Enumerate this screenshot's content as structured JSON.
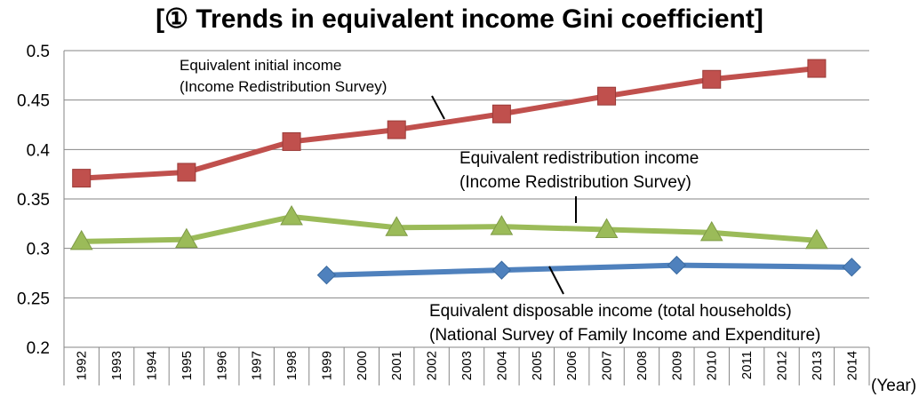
{
  "chart_data": {
    "type": "line",
    "title": "[① Trends in equivalent income Gini coefficient]",
    "xlabel": "(Year)",
    "ylabel": "",
    "ylim": [
      0.2,
      0.5
    ],
    "y_ticks": [
      "0.2",
      "0.25",
      "0.3",
      "0.35",
      "0.4",
      "0.45",
      "0.5"
    ],
    "categories": [
      "1992",
      "1993",
      "1994",
      "1995",
      "1996",
      "1997",
      "1998",
      "1999",
      "2000",
      "2001",
      "2002",
      "2003",
      "2004",
      "2005",
      "2006",
      "2007",
      "2008",
      "2009",
      "2010",
      "2011",
      "2012",
      "2013",
      "2014"
    ],
    "grid": "horizontal",
    "legend": "none",
    "series": [
      {
        "name": "Equivalent initial income (Income Redistribution Survey)",
        "color": "#c0504d",
        "marker": "square",
        "points": [
          {
            "x": "1992",
            "y": 0.371
          },
          {
            "x": "1995",
            "y": 0.377
          },
          {
            "x": "1998",
            "y": 0.408
          },
          {
            "x": "2001",
            "y": 0.42
          },
          {
            "x": "2004",
            "y": 0.436
          },
          {
            "x": "2007",
            "y": 0.454
          },
          {
            "x": "2010",
            "y": 0.471
          },
          {
            "x": "2013",
            "y": 0.482
          }
        ]
      },
      {
        "name": "Equivalent redistribution income (Income Redistribution Survey)",
        "color": "#9bbb59",
        "marker": "triangle",
        "points": [
          {
            "x": "1992",
            "y": 0.307
          },
          {
            "x": "1995",
            "y": 0.309
          },
          {
            "x": "1998",
            "y": 0.332
          },
          {
            "x": "2001",
            "y": 0.321
          },
          {
            "x": "2004",
            "y": 0.322
          },
          {
            "x": "2007",
            "y": 0.319
          },
          {
            "x": "2010",
            "y": 0.316
          },
          {
            "x": "2013",
            "y": 0.308
          }
        ]
      },
      {
        "name": "Equivalent disposable income (total households) (National Survey of Family Income and Expenditure)",
        "color": "#4f81bd",
        "marker": "diamond",
        "points": [
          {
            "x": "1999",
            "y": 0.273
          },
          {
            "x": "2004",
            "y": 0.278
          },
          {
            "x": "2009",
            "y": 0.283
          },
          {
            "x": "2014",
            "y": 0.281
          }
        ]
      }
    ],
    "annotations": [
      {
        "series": 0,
        "lines": [
          "Equivalent initial income",
          "(Income Redistribution Survey)"
        ],
        "size": "small"
      },
      {
        "series": 1,
        "lines": [
          "Equivalent redistribution income",
          "(Income Redistribution Survey)"
        ],
        "size": "big"
      },
      {
        "series": 2,
        "lines": [
          "Equivalent disposable income (total households)",
          "(National Survey of Family Income and Expenditure)"
        ],
        "size": "big"
      }
    ]
  }
}
